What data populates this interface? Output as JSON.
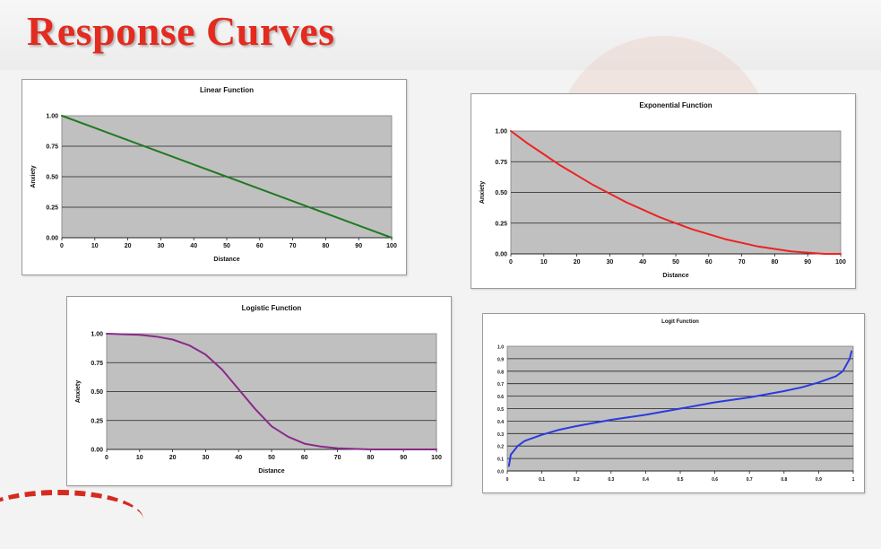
{
  "slide": {
    "title": "Response Curves"
  },
  "chart_data": [
    {
      "type": "line",
      "title": "Linear Function",
      "xlabel": "Distance",
      "ylabel": "Anxiety",
      "xlim": [
        0,
        100
      ],
      "ylim": [
        0,
        1
      ],
      "xticks": [
        "0",
        "10",
        "20",
        "30",
        "40",
        "50",
        "60",
        "70",
        "80",
        "90",
        "100"
      ],
      "yticks": [
        "0.00",
        "0.25",
        "0.50",
        "0.75",
        "1.00"
      ],
      "grid": true,
      "color": "#1f7a1f",
      "series": [
        {
          "x": [
            0,
            10,
            20,
            30,
            40,
            50,
            60,
            70,
            80,
            90,
            100
          ],
          "y": [
            1.0,
            0.9,
            0.8,
            0.7,
            0.6,
            0.5,
            0.4,
            0.3,
            0.2,
            0.1,
            0.0
          ]
        }
      ]
    },
    {
      "type": "line",
      "title": "Exponential Function",
      "xlabel": "Distance",
      "ylabel": "Anxiety",
      "xlim": [
        0,
        100
      ],
      "ylim": [
        0,
        1
      ],
      "xticks": [
        "0",
        "10",
        "20",
        "30",
        "40",
        "50",
        "60",
        "70",
        "80",
        "90",
        "100"
      ],
      "yticks": [
        "0.00",
        "0.25",
        "0.50",
        "0.75",
        "1.00"
      ],
      "grid": true,
      "color": "#ee2222",
      "series": [
        {
          "x": [
            0,
            5,
            10,
            15,
            20,
            25,
            30,
            35,
            40,
            45,
            50,
            55,
            60,
            65,
            70,
            75,
            80,
            85,
            90,
            95,
            100
          ],
          "y": [
            1.0,
            0.9,
            0.81,
            0.72,
            0.64,
            0.56,
            0.49,
            0.42,
            0.36,
            0.3,
            0.25,
            0.2,
            0.16,
            0.12,
            0.09,
            0.06,
            0.04,
            0.02,
            0.01,
            0.0,
            0.0
          ]
        }
      ]
    },
    {
      "type": "line",
      "title": "Logistic Function",
      "xlabel": "Distance",
      "ylabel": "Anxiety",
      "xlim": [
        0,
        100
      ],
      "ylim": [
        0,
        1
      ],
      "xticks": [
        "0",
        "10",
        "20",
        "30",
        "40",
        "50",
        "60",
        "70",
        "80",
        "90",
        "100"
      ],
      "yticks": [
        "0.00",
        "0.25",
        "0.50",
        "0.75",
        "1.00"
      ],
      "grid": true,
      "color": "#8a2a8a",
      "series": [
        {
          "x": [
            0,
            5,
            10,
            15,
            20,
            25,
            30,
            35,
            40,
            45,
            50,
            55,
            60,
            65,
            70,
            75,
            80,
            85,
            90,
            95,
            100
          ],
          "y": [
            1.0,
            0.995,
            0.99,
            0.975,
            0.95,
            0.9,
            0.82,
            0.69,
            0.52,
            0.35,
            0.2,
            0.11,
            0.05,
            0.025,
            0.01,
            0.005,
            0.0,
            0.0,
            0.0,
            0.0,
            0.0
          ]
        }
      ]
    },
    {
      "type": "line",
      "title": "Logit Function",
      "xlabel": "",
      "ylabel": "",
      "xlim": [
        0,
        1
      ],
      "ylim": [
        0,
        1
      ],
      "xticks": [
        "0",
        "0.1",
        "0.2",
        "0.3",
        "0.4",
        "0.5",
        "0.6",
        "0.7",
        "0.8",
        "0.9",
        "1"
      ],
      "yticks": [
        "0.0",
        "0.1",
        "0.2",
        "0.3",
        "0.4",
        "0.5",
        "0.6",
        "0.7",
        "0.8",
        "0.9",
        "1.0"
      ],
      "grid": true,
      "color": "#2a3be0",
      "series": [
        {
          "x": [
            0.005,
            0.01,
            0.03,
            0.05,
            0.1,
            0.15,
            0.2,
            0.3,
            0.4,
            0.5,
            0.6,
            0.7,
            0.8,
            0.85,
            0.9,
            0.95,
            0.97,
            0.99,
            0.995
          ],
          "y": [
            0.04,
            0.13,
            0.2,
            0.24,
            0.29,
            0.33,
            0.36,
            0.41,
            0.45,
            0.5,
            0.55,
            0.59,
            0.64,
            0.67,
            0.71,
            0.76,
            0.8,
            0.9,
            0.96
          ]
        }
      ]
    }
  ]
}
